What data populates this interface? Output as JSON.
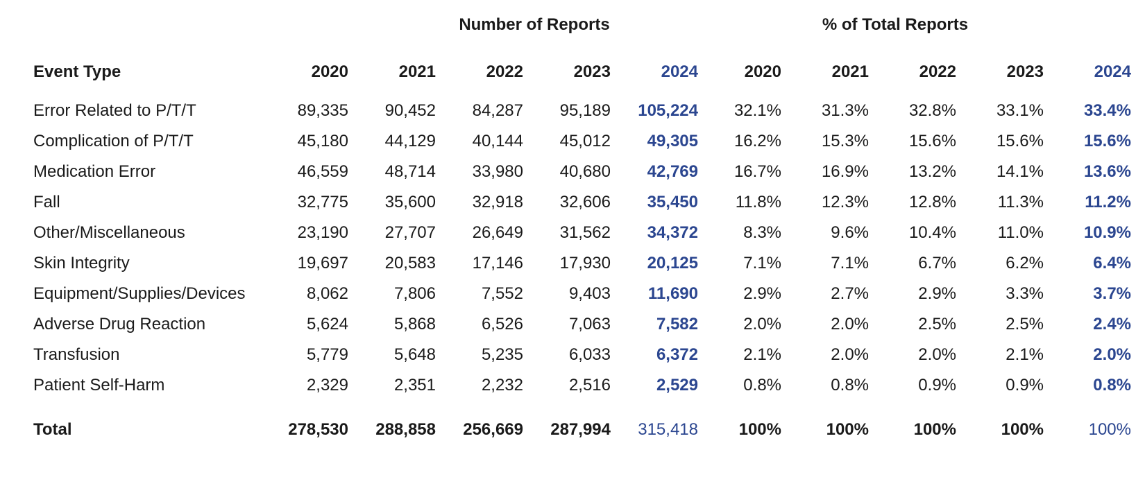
{
  "headings": {
    "number_of_reports": "Number of Reports",
    "percent_of_total": "% of Total Reports"
  },
  "columns": {
    "event_type": "Event Type",
    "years": [
      "2020",
      "2021",
      "2022",
      "2023",
      "2024"
    ]
  },
  "colors": {
    "highlight": "#2b4690",
    "text": "#1a1a1a"
  },
  "rows": [
    {
      "type": "Error Related to P/T/T",
      "counts": [
        "89,335",
        "90,452",
        "84,287",
        "95,189",
        "105,224"
      ],
      "pcts": [
        "32.1%",
        "31.3%",
        "32.8%",
        "33.1%",
        "33.4%"
      ]
    },
    {
      "type": "Complication of P/T/T",
      "counts": [
        "45,180",
        "44,129",
        "40,144",
        "45,012",
        "49,305"
      ],
      "pcts": [
        "16.2%",
        "15.3%",
        "15.6%",
        "15.6%",
        "15.6%"
      ]
    },
    {
      "type": "Medication Error",
      "counts": [
        "46,559",
        "48,714",
        "33,980",
        "40,680",
        "42,769"
      ],
      "pcts": [
        "16.7%",
        "16.9%",
        "13.2%",
        "14.1%",
        "13.6%"
      ]
    },
    {
      "type": "Fall",
      "counts": [
        "32,775",
        "35,600",
        "32,918",
        "32,606",
        "35,450"
      ],
      "pcts": [
        "11.8%",
        "12.3%",
        "12.8%",
        "11.3%",
        "11.2%"
      ]
    },
    {
      "type": "Other/Miscellaneous",
      "counts": [
        "23,190",
        "27,707",
        "26,649",
        "31,562",
        "34,372"
      ],
      "pcts": [
        "8.3%",
        "9.6%",
        "10.4%",
        "11.0%",
        "10.9%"
      ]
    },
    {
      "type": "Skin Integrity",
      "counts": [
        "19,697",
        "20,583",
        "17,146",
        "17,930",
        "20,125"
      ],
      "pcts": [
        "7.1%",
        "7.1%",
        "6.7%",
        "6.2%",
        "6.4%"
      ]
    },
    {
      "type": "Equipment/Supplies/Devices",
      "counts": [
        "8,062",
        "7,806",
        "7,552",
        "9,403",
        "11,690"
      ],
      "pcts": [
        "2.9%",
        "2.7%",
        "2.9%",
        "3.3%",
        "3.7%"
      ]
    },
    {
      "type": "Adverse Drug Reaction",
      "counts": [
        "5,624",
        "5,868",
        "6,526",
        "7,063",
        "7,582"
      ],
      "pcts": [
        "2.0%",
        "2.0%",
        "2.5%",
        "2.5%",
        "2.4%"
      ]
    },
    {
      "type": "Transfusion",
      "counts": [
        "5,779",
        "5,648",
        "5,235",
        "6,033",
        "6,372"
      ],
      "pcts": [
        "2.1%",
        "2.0%",
        "2.0%",
        "2.1%",
        "2.0%"
      ]
    },
    {
      "type": "Patient Self-Harm",
      "counts": [
        "2,329",
        "2,351",
        "2,232",
        "2,516",
        "2,529"
      ],
      "pcts": [
        "0.8%",
        "0.8%",
        "0.9%",
        "0.9%",
        "0.8%"
      ]
    }
  ],
  "total": {
    "label": "Total",
    "counts": [
      "278,530",
      "288,858",
      "256,669",
      "287,994",
      "315,418"
    ],
    "pcts": [
      "100%",
      "100%",
      "100%",
      "100%",
      "100%"
    ]
  }
}
